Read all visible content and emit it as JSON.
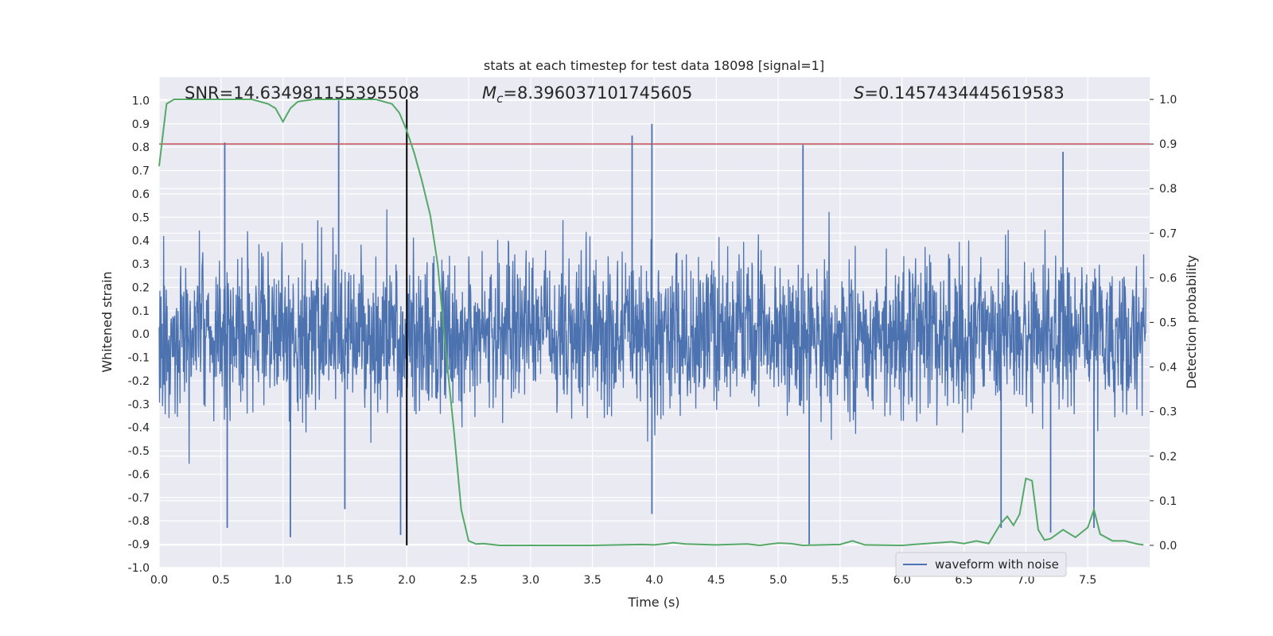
{
  "chart_data": {
    "type": "line",
    "title": "stats at each timestep for test data 18098 [signal=1]",
    "xlabel": "Time (s)",
    "ylabel": "Whitened strain",
    "ylabel_right": "Detection probability",
    "xlim": [
      0.0,
      8.0
    ],
    "ylim": [
      -1.0,
      1.1
    ],
    "ylim_right": [
      -0.05,
      1.05
    ],
    "x_ticks": [
      "0.0",
      "0.5",
      "1.0",
      "1.5",
      "2.0",
      "2.5",
      "3.0",
      "3.5",
      "4.0",
      "4.5",
      "5.0",
      "5.5",
      "6.0",
      "6.5",
      "7.0",
      "7.5"
    ],
    "y_ticks": [
      "1.0",
      "0.9",
      "0.8",
      "0.7",
      "0.6",
      "0.5",
      "0.4",
      "0.3",
      "0.2",
      "0.1",
      "0.0",
      "-0.1",
      "-0.2",
      "-0.3",
      "-0.4",
      "-0.5",
      "-0.6",
      "-0.7",
      "-0.8",
      "-0.9",
      "-1.0"
    ],
    "y_ticks_right": [
      "1.0",
      "0.9",
      "0.8",
      "0.7",
      "0.6",
      "0.5",
      "0.4",
      "0.3",
      "0.2",
      "0.1",
      "0.0"
    ],
    "grid": true,
    "legend_position": "bottom-right",
    "annotations": {
      "snr": "SNR=14.634981155395508",
      "mc_symbol": "M",
      "mc_subscript": "c",
      "mc_value": "=8.396037101745605",
      "s_symbol": "S",
      "s_value": "=0.1457434445619583"
    },
    "threshold": {
      "axis": "right",
      "y": 0.9,
      "color": "#c44e52"
    },
    "marker_line": {
      "x": 2.0,
      "color": "#000000"
    },
    "series": [
      {
        "name": "waveform with noise",
        "axis": "left",
        "color": "#4c72b0",
        "style": "dense-noise",
        "typical_envelope": [
          -0.45,
          0.45
        ],
        "spikes": [
          {
            "x": 0.53,
            "y": 0.82
          },
          {
            "x": 1.45,
            "y": 1.0
          },
          {
            "x": 3.82,
            "y": 0.85
          },
          {
            "x": 3.98,
            "y": 0.9
          },
          {
            "x": 5.2,
            "y": 0.81
          },
          {
            "x": 7.3,
            "y": 0.78
          },
          {
            "x": 1.06,
            "y": -0.87
          },
          {
            "x": 1.95,
            "y": -0.86
          },
          {
            "x": 2.0,
            "y": -0.75
          },
          {
            "x": 3.98,
            "y": -0.77
          },
          {
            "x": 5.25,
            "y": -0.9
          },
          {
            "x": 6.8,
            "y": -0.83
          },
          {
            "x": 7.2,
            "y": -0.85
          },
          {
            "x": 7.55,
            "y": -0.83
          },
          {
            "x": 1.5,
            "y": -0.75
          },
          {
            "x": 0.55,
            "y": -0.83
          }
        ]
      },
      {
        "name": "",
        "axis": "right",
        "color": "#55a868",
        "x": [
          0.0,
          0.06,
          0.12,
          0.25,
          0.5,
          0.75,
          0.88,
          0.94,
          1.0,
          1.06,
          1.12,
          1.25,
          1.5,
          1.75,
          1.88,
          1.94,
          2.0,
          2.06,
          2.12,
          2.19,
          2.25,
          2.31,
          2.38,
          2.44,
          2.5,
          2.56,
          2.62,
          2.75,
          3.0,
          3.5,
          3.9,
          4.0,
          4.1,
          4.15,
          4.25,
          4.5,
          4.75,
          4.85,
          5.0,
          5.1,
          5.2,
          5.5,
          5.6,
          5.7,
          6.0,
          6.3,
          6.4,
          6.5,
          6.6,
          6.7,
          6.8,
          6.85,
          6.9,
          6.95,
          7.0,
          7.05,
          7.1,
          7.15,
          7.2,
          7.3,
          7.4,
          7.5,
          7.55,
          7.6,
          7.7,
          7.8,
          7.9,
          7.95
        ],
        "y": [
          0.85,
          0.99,
          1.0,
          1.0,
          1.0,
          1.0,
          0.99,
          0.98,
          0.95,
          0.98,
          0.995,
          1.0,
          1.0,
          1.0,
          0.99,
          0.97,
          0.93,
          0.88,
          0.82,
          0.74,
          0.63,
          0.45,
          0.26,
          0.08,
          0.01,
          0.003,
          0.004,
          0.0,
          0.0,
          0.0,
          0.002,
          0.001,
          0.004,
          0.006,
          0.003,
          0.001,
          0.003,
          0.0,
          0.005,
          0.004,
          0.0,
          0.002,
          0.01,
          0.001,
          0.0,
          0.006,
          0.008,
          0.004,
          0.01,
          0.004,
          0.05,
          0.065,
          0.045,
          0.07,
          0.15,
          0.145,
          0.035,
          0.012,
          0.015,
          0.035,
          0.018,
          0.04,
          0.08,
          0.025,
          0.01,
          0.01,
          0.003,
          0.001
        ]
      }
    ]
  }
}
